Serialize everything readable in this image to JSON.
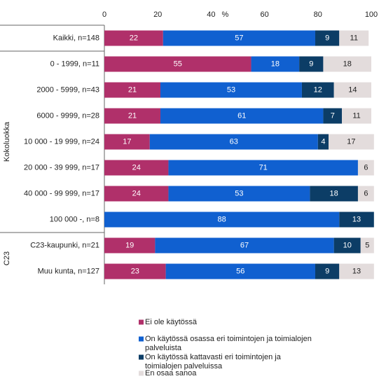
{
  "chart_data": {
    "type": "bar",
    "orientation": "horizontal",
    "stacked": true,
    "xlabel": "%",
    "xlim": [
      0,
      100
    ],
    "xticks": [
      "0",
      "20",
      "40",
      "60",
      "80",
      "100"
    ],
    "grid": false,
    "legend_position": "bottom",
    "categories": [
      "Kaikki, n=148",
      "0 - 1999, n=11",
      "2000 - 5999, n=43",
      "6000 - 9999, n=28",
      "10 000 - 19 999, n=24",
      "20 000 - 39 999, n=17",
      "40 000 - 99 999, n=17",
      "100 000 -, n=8",
      "C23-kaupunki, n=21",
      "Muu kunta, n=127"
    ],
    "groups": [
      {
        "name": "Kokoluokka",
        "from": 1,
        "to": 7
      },
      {
        "name": "C23",
        "from": 8,
        "to": 9
      }
    ],
    "series": [
      {
        "name": "Ei ole käytössä",
        "color": "#b0306a",
        "label_color": "#ffffff",
        "values": [
          22,
          55,
          21,
          21,
          17,
          24,
          24,
          0,
          19,
          23
        ]
      },
      {
        "name": "On käytössä osassa eri toimintojen ja toimialojen palveluista",
        "color": "#1060d0",
        "label_color": "#ffffff",
        "values": [
          57,
          18,
          53,
          61,
          63,
          71,
          53,
          88,
          67,
          56
        ]
      },
      {
        "name": "On käytössä kattavasti eri toimintojen ja toimialojen palveluissa",
        "color": "#0c3d66",
        "label_color": "#ffffff",
        "values": [
          9,
          9,
          12,
          7,
          4,
          0,
          18,
          13,
          10,
          9
        ]
      },
      {
        "name": "En osaa sanoa",
        "color": "#e3dcdc",
        "label_color": "#222222",
        "values": [
          11,
          18,
          14,
          11,
          17,
          6,
          6,
          0,
          5,
          13
        ]
      }
    ]
  }
}
